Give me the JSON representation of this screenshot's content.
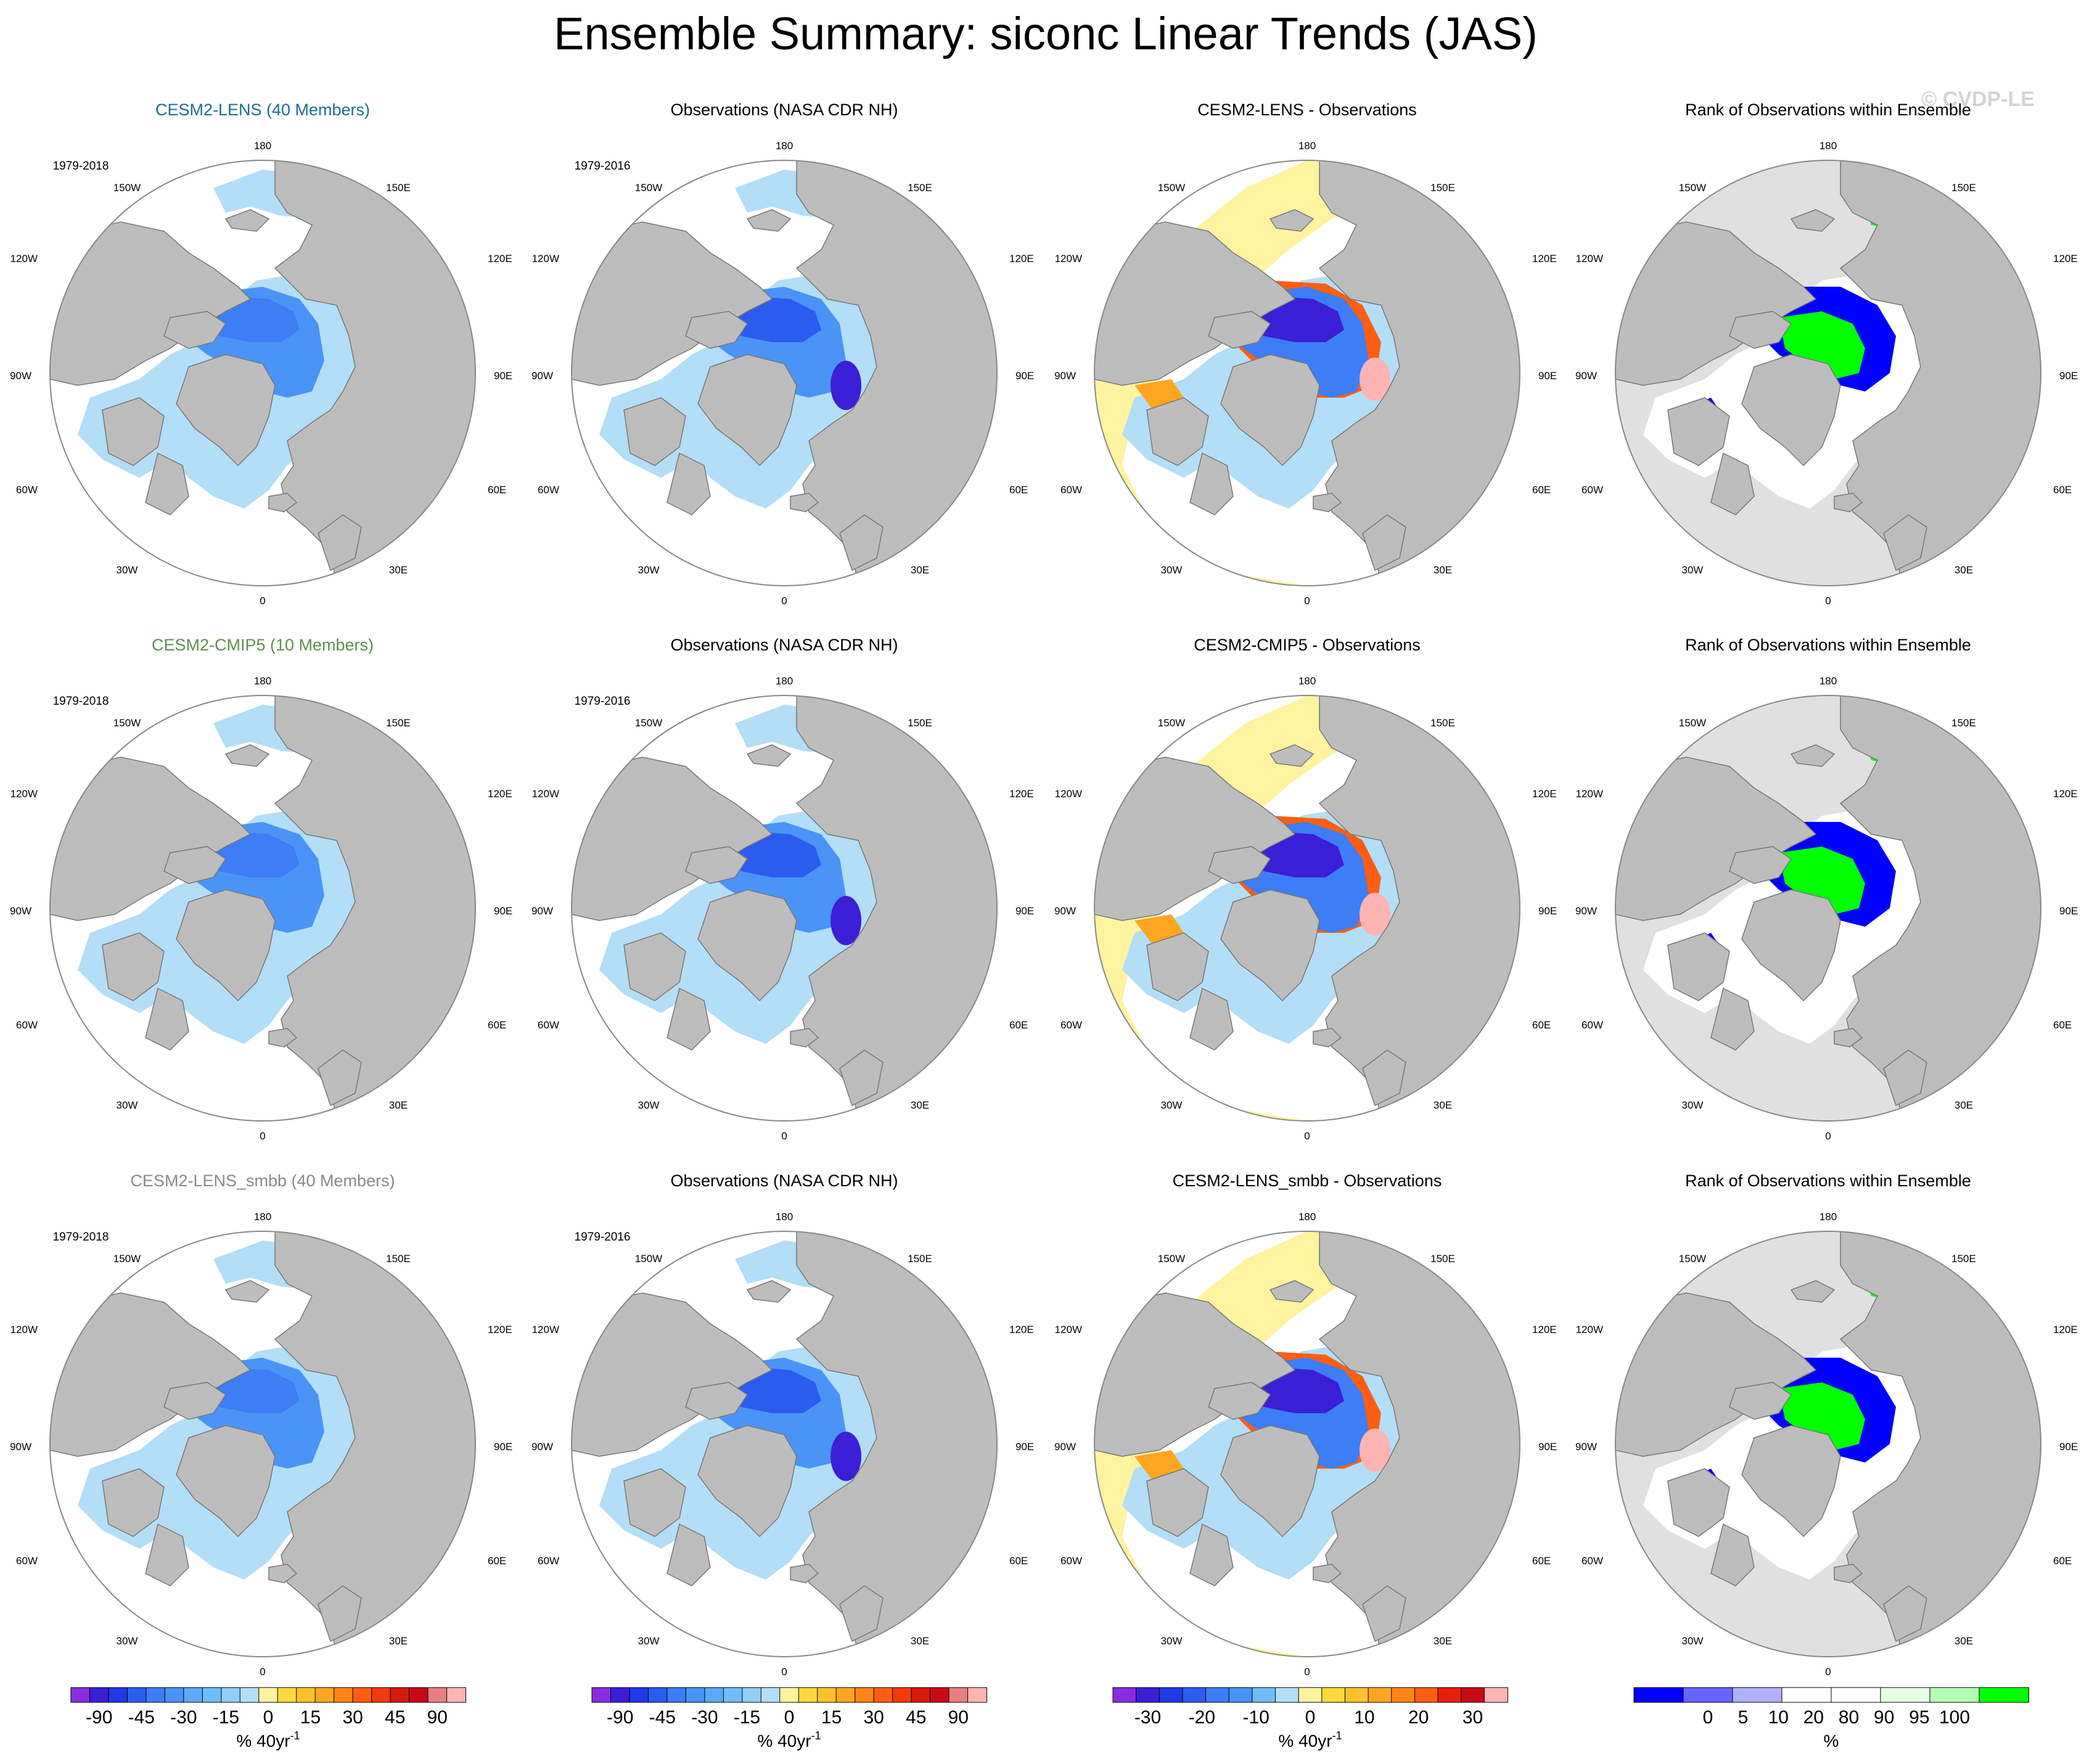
{
  "title": "Ensemble Summary: siconc Linear Trends (JAS)",
  "watermark": "© CVDP-LE",
  "colors": {
    "land": "#bdbdbd",
    "ocean": "#ffffff",
    "outline": "#888888",
    "title_lens": "#1d6d8f",
    "title_cmip5": "#5e8f4f",
    "title_smbb": "#8a8a8a",
    "title_black": "#000000"
  },
  "map_labels": {
    "top": "180",
    "bottom": "0",
    "upper_left": "150W",
    "upper_right": "150E",
    "left_high": "120W",
    "right_high": "120E",
    "left_mid": "90W",
    "right_mid": "90E",
    "left_low": "60W",
    "right_low": "60E",
    "lower_left": "30W",
    "lower_right": "30E"
  },
  "chart_data": [
    {
      "type": "heatmap",
      "row": 1,
      "col": 1,
      "title": "CESM2-LENS (40 Members)",
      "title_color": "#1d6d8f",
      "period": "1979-2018",
      "field": "model_trend"
    },
    {
      "type": "heatmap",
      "row": 1,
      "col": 2,
      "title": "Observations (NASA CDR NH)",
      "title_color": "#000000",
      "period": "1979-2016",
      "field": "obs_trend"
    },
    {
      "type": "heatmap",
      "row": 1,
      "col": 3,
      "title": "CESM2-LENS - Observations",
      "title_color": "#000000",
      "period": "",
      "field": "difference"
    },
    {
      "type": "heatmap",
      "row": 1,
      "col": 4,
      "title": "Rank of Observations within Ensemble",
      "title_color": "#000000",
      "period": "",
      "field": "rank"
    },
    {
      "type": "heatmap",
      "row": 2,
      "col": 1,
      "title": "CESM2-CMIP5 (10 Members)",
      "title_color": "#5e8f4f",
      "period": "1979-2018",
      "field": "model_trend"
    },
    {
      "type": "heatmap",
      "row": 2,
      "col": 2,
      "title": "Observations (NASA CDR NH)",
      "title_color": "#000000",
      "period": "1979-2016",
      "field": "obs_trend"
    },
    {
      "type": "heatmap",
      "row": 2,
      "col": 3,
      "title": "CESM2-CMIP5 - Observations",
      "title_color": "#000000",
      "period": "",
      "field": "difference"
    },
    {
      "type": "heatmap",
      "row": 2,
      "col": 4,
      "title": "Rank of Observations within Ensemble",
      "title_color": "#000000",
      "period": "",
      "field": "rank"
    },
    {
      "type": "heatmap",
      "row": 3,
      "col": 1,
      "title": "CESM2-LENS_smbb (40 Members)",
      "title_color": "#8a8a8a",
      "period": "1979-2018",
      "field": "model_trend"
    },
    {
      "type": "heatmap",
      "row": 3,
      "col": 2,
      "title": "Observations (NASA CDR NH)",
      "title_color": "#000000",
      "period": "1979-2016",
      "field": "obs_trend"
    },
    {
      "type": "heatmap",
      "row": 3,
      "col": 3,
      "title": "CESM2-LENS_smbb - Observations",
      "title_color": "#000000",
      "period": "",
      "field": "difference"
    },
    {
      "type": "heatmap",
      "row": 3,
      "col": 4,
      "title": "Rank of Observations within Ensemble",
      "title_color": "#000000",
      "period": "",
      "field": "rank"
    }
  ],
  "colorbars": [
    {
      "col": 1,
      "unit_main": "% 40yr",
      "unit_sup": "-1",
      "colors": [
        "#8a2be2",
        "#3a1fd6",
        "#1f3ae6",
        "#2b5cf0",
        "#3d7df5",
        "#4a94f7",
        "#5aaaf8",
        "#6fbdf8",
        "#8fcff8",
        "#b3def7",
        "#fff3a0",
        "#ffd83d",
        "#ffc12a",
        "#ffa520",
        "#ff8518",
        "#ff5e12",
        "#f23a0c",
        "#d81a0a",
        "#c80a14",
        "#e88080",
        "#ffb3b3"
      ],
      "ticks": [
        "-90",
        "-45",
        "-30",
        "-15",
        "0",
        "15",
        "30",
        "45",
        "90"
      ]
    },
    {
      "col": 2,
      "unit_main": "% 40yr",
      "unit_sup": "-1",
      "colors": [
        "#8a2be2",
        "#3a1fd6",
        "#1f3ae6",
        "#2b5cf0",
        "#3d7df5",
        "#4a94f7",
        "#5aaaf8",
        "#6fbdf8",
        "#8fcff8",
        "#b3def7",
        "#fff3a0",
        "#ffd83d",
        "#ffc12a",
        "#ffa520",
        "#ff8518",
        "#ff5e12",
        "#f23a0c",
        "#d81a0a",
        "#c80a14",
        "#e88080",
        "#ffb3b3"
      ],
      "ticks": [
        "-90",
        "-45",
        "-30",
        "-15",
        "0",
        "15",
        "30",
        "45",
        "90"
      ]
    },
    {
      "col": 3,
      "unit_main": "% 40yr",
      "unit_sup": "-1",
      "colors": [
        "#8a2be2",
        "#3a1fd6",
        "#1f3ae6",
        "#2b5cf0",
        "#3d7df5",
        "#4a94f7",
        "#6fbdf8",
        "#b3def7",
        "#fff3a0",
        "#ffd83d",
        "#ffc12a",
        "#ffa520",
        "#ff8518",
        "#ff5e12",
        "#e8200c",
        "#c80a14",
        "#ffb3b3"
      ],
      "ticks": [
        "-30",
        "-20",
        "-10",
        "0",
        "10",
        "20",
        "30"
      ]
    },
    {
      "col": 4,
      "unit_main": "%",
      "unit_sup": "",
      "colors": [
        "#0000ff",
        "#6666ff",
        "#b0b0ff",
        "#ffffff",
        "#ffffff",
        "#e6ffe6",
        "#b3ffb3",
        "#00ff00"
      ],
      "ticks": [
        "0",
        "5",
        "10",
        "20",
        "80",
        "90",
        "95",
        "100"
      ]
    }
  ]
}
